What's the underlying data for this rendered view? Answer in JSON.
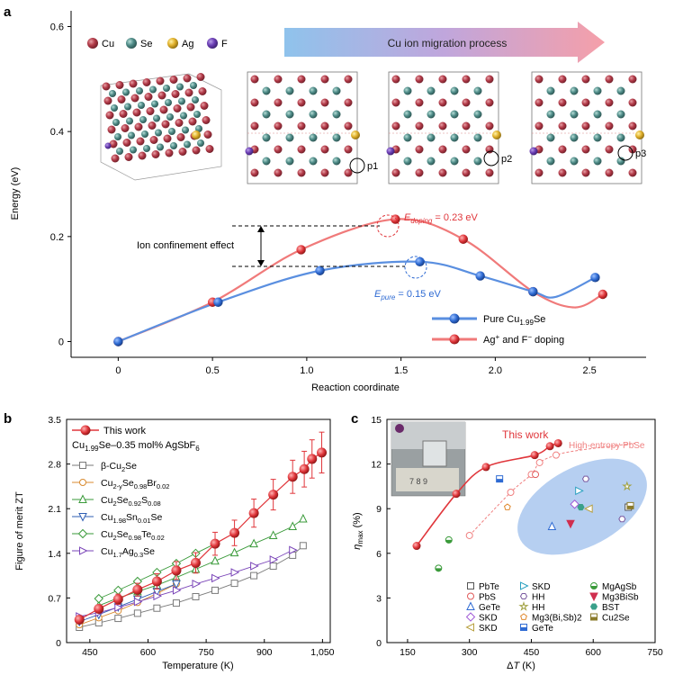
{
  "panel_labels": {
    "a": "a",
    "b": "b",
    "c": "c"
  },
  "chart_data": [
    {
      "id": "a",
      "type": "line",
      "title": "Cu ion migration process",
      "xlabel": "Reaction coordinate",
      "ylabel": "Energy (eV)",
      "xlim": [
        -0.25,
        2.8
      ],
      "ylim": [
        -0.03,
        0.63
      ],
      "xticks": [
        0,
        0.5,
        1,
        1.5,
        2,
        2.5
      ],
      "xtick_labels": [
        "0",
        "0.5",
        "1.0",
        "1.5",
        "2.0",
        "2.5"
      ],
      "yticks": [
        0,
        0.2,
        0.4,
        0.6
      ],
      "ytick_labels": [
        "0",
        "0.2",
        "0.4",
        "0.6"
      ],
      "atom_legend": [
        {
          "label": "Cu",
          "color": "#b23a48"
        },
        {
          "label": "Se",
          "color": "#4f8c88"
        },
        {
          "label": "Ag",
          "color": "#e1b12c"
        },
        {
          "label": "F",
          "color": "#6c3fb5"
        }
      ],
      "structure_positions": [
        "p1",
        "p2",
        "p3"
      ],
      "series": [
        {
          "name": "Pure Cu1.99Se",
          "name_main": "Pure Cu",
          "name_sub": "1.99",
          "name_tail": "Se",
          "color": "#2f6bd3",
          "x": [
            0,
            0.53,
            1.07,
            1.6,
            1.92,
            2.2,
            2.53
          ],
          "y": [
            0,
            0.075,
            0.135,
            0.152,
            0.125,
            0.095,
            0.122
          ]
        },
        {
          "name": "Ag+ and F- doping",
          "name_main": "Ag",
          "name_sup1": "+",
          "name_mid": " and F",
          "name_sup2": "−",
          "name_tail": " doping",
          "color": "#e0363b",
          "x": [
            0,
            0.5,
            0.97,
            1.47,
            1.83,
            2.2,
            2.57
          ],
          "y": [
            0,
            0.075,
            0.175,
            0.233,
            0.195,
            0.095,
            0.09
          ]
        }
      ],
      "annotations": {
        "ion_confinement": "Ion confinement effect",
        "e_doping_label": "E",
        "e_doping_sub": "doping",
        "e_doping_value": " = 0.23 eV",
        "e_pure_label": "E",
        "e_pure_sub": "pure",
        "e_pure_value": " = 0.15 eV"
      }
    },
    {
      "id": "b",
      "type": "line",
      "xlabel": "Temperature (K)",
      "ylabel": "Figure of merit ZT",
      "xlim": [
        390,
        1070
      ],
      "ylim": [
        0,
        3.5
      ],
      "xticks": [
        450,
        600,
        750,
        900,
        1050
      ],
      "xtick_labels": [
        "450",
        "600",
        "750",
        "900",
        "1,050"
      ],
      "yticks": [
        0,
        0.7,
        1.4,
        2.1,
        2.8,
        3.5
      ],
      "ytick_labels": [
        "0",
        "0.7",
        "1.4",
        "2.1",
        "2.8",
        "3.5"
      ],
      "this_work": {
        "name": "This work",
        "composition": "Cu1.99Se–0.35 mol% AgSbF6",
        "comp_main": "Cu",
        "comp_sub1": "1.99",
        "comp_mid": "Se–0.35 mol% AgSbF",
        "comp_sub2": "6",
        "color": "#e0363b",
        "x": [
          423,
          473,
          523,
          573,
          623,
          673,
          723,
          773,
          823,
          873,
          923,
          973,
          1003,
          1023,
          1048
        ],
        "y": [
          0.36,
          0.53,
          0.68,
          0.83,
          0.96,
          1.13,
          1.25,
          1.55,
          1.72,
          2.03,
          2.32,
          2.6,
          2.72,
          2.88,
          2.98
        ],
        "err": [
          0.05,
          0.06,
          0.08,
          0.1,
          0.12,
          0.14,
          0.16,
          0.18,
          0.2,
          0.22,
          0.24,
          0.26,
          0.28,
          0.3,
          0.32
        ]
      },
      "series": [
        {
          "name": "β-Cu2Se",
          "marker": "square",
          "color": "#7a7a7a",
          "x": [
            423,
            473,
            523,
            573,
            623,
            673,
            723,
            773,
            823,
            873,
            923,
            973,
            1000
          ],
          "y": [
            0.24,
            0.31,
            0.38,
            0.46,
            0.54,
            0.62,
            0.72,
            0.82,
            0.93,
            1.05,
            1.2,
            1.37,
            1.52
          ]
        },
        {
          "name": "Cu2-ySe0.98Br0.02",
          "marker": "circle",
          "color": "#d88a2f",
          "x": [
            423,
            473,
            523,
            573,
            623,
            673
          ],
          "y": [
            0.28,
            0.39,
            0.5,
            0.63,
            0.77,
            0.92
          ]
        },
        {
          "name": "Cu2Se0.92S0.08",
          "marker": "triangle-up",
          "color": "#3a9a3a",
          "x": [
            473,
            523,
            573,
            623,
            673,
            723,
            773,
            823,
            873,
            923,
            973,
            1000
          ],
          "y": [
            0.58,
            0.7,
            0.8,
            0.9,
            1.02,
            1.15,
            1.28,
            1.41,
            1.55,
            1.68,
            1.82,
            1.94
          ]
        },
        {
          "name": "Cu1.98Sn0.01Se",
          "marker": "triangle-down",
          "color": "#2f5fb3",
          "x": [
            423,
            473,
            523,
            573,
            623,
            673
          ],
          "y": [
            0.33,
            0.44,
            0.56,
            0.68,
            0.8,
            0.92
          ]
        },
        {
          "name": "Cu2Se0.98Te0.02",
          "marker": "diamond",
          "color": "#3a9a3a",
          "x": [
            473,
            523,
            573,
            623,
            673,
            723,
            773
          ],
          "y": [
            0.69,
            0.82,
            0.96,
            1.1,
            1.24,
            1.4,
            1.55
          ]
        },
        {
          "name": "Cu1.7Ag0.3Se",
          "marker": "triangle-right",
          "color": "#7a45b8",
          "x": [
            423,
            473,
            523,
            573,
            623,
            673,
            723,
            773,
            823,
            873,
            923,
            973
          ],
          "y": [
            0.41,
            0.47,
            0.55,
            0.64,
            0.73,
            0.82,
            0.92,
            1.01,
            1.1,
            1.2,
            1.3,
            1.45
          ]
        }
      ],
      "legend_labels": [
        [
          "β-Cu",
          "2",
          "Se"
        ],
        [
          "Cu",
          "2-y",
          "Se",
          "0.98",
          "Br",
          "0.02",
          ""
        ],
        [
          "Cu",
          "2",
          "Se",
          "0.92",
          "S",
          "0.08",
          ""
        ],
        [
          "Cu",
          "1.98",
          "Sn",
          "0.01",
          "Se"
        ],
        [
          "Cu",
          "2",
          "Se",
          "0.98",
          "Te",
          "0.02",
          ""
        ],
        [
          "Cu",
          "1.7",
          "Ag",
          "0.3",
          "Se"
        ]
      ]
    },
    {
      "id": "c",
      "type": "scatter",
      "xlabel": "ΔT (K)",
      "xlabel_delta": "Δ",
      "xlabel_T": "T",
      "xlabel_unit": " (K)",
      "ylabel": "ηmax (%)",
      "ylabel_eta": "η",
      "ylabel_sub": "max",
      "ylabel_unit": " (%)",
      "xlim": [
        100,
        750
      ],
      "ylim": [
        0,
        15
      ],
      "xticks": [
        150,
        300,
        450,
        600,
        750
      ],
      "xtick_labels": [
        "150",
        "300",
        "450",
        "600",
        "750"
      ],
      "yticks": [
        0,
        3,
        6,
        9,
        12,
        15
      ],
      "ytick_labels": [
        "0",
        "3",
        "6",
        "9",
        "12",
        "15"
      ],
      "this_work": {
        "name": "This work",
        "color": "#e0363b",
        "x": [
          172,
          268,
          340,
          458,
          495,
          515
        ],
        "y": [
          6.5,
          10.0,
          11.8,
          12.6,
          13.2,
          13.4
        ]
      },
      "high_entropy": {
        "name": "High-entropy PbSe",
        "color": "#f08080",
        "x": [
          300,
          400,
          450,
          470,
          510
        ],
        "y": [
          7.2,
          10.1,
          11.3,
          12.1,
          12.6
        ]
      },
      "others": [
        {
          "name": "PbTe",
          "marker": "square-open",
          "color": "#555555",
          "x": [
            685
          ],
          "y": [
            9.1
          ]
        },
        {
          "name": "PbS",
          "marker": "circle-open",
          "color": "#e05a5a",
          "x": [
            460
          ],
          "y": [
            11.3
          ]
        },
        {
          "name": "GeTe",
          "marker": "triangle-open",
          "color": "#2f6bd3",
          "x": [
            500
          ],
          "y": [
            7.8
          ]
        },
        {
          "name": "SKD",
          "marker": "diamond-open",
          "color": "#a05bd6",
          "x": [
            555
          ],
          "y": [
            9.3
          ]
        },
        {
          "name": "SKD",
          "marker": "triangle-left-open",
          "color": "#b8a040",
          "x": [
            590
          ],
          "y": [
            9.0
          ]
        },
        {
          "name": "SKD",
          "marker": "triangle-right-open",
          "color": "#2aa0c0",
          "x": [
            565
          ],
          "y": [
            10.2
          ]
        },
        {
          "name": "HH",
          "marker": "hexagon-open",
          "color": "#7a5aa0",
          "x": [
            582,
            670
          ],
          "y": [
            11.0,
            8.3
          ]
        },
        {
          "name": "HH",
          "marker": "star-open",
          "color": "#a0a040",
          "x": [
            682
          ],
          "y": [
            10.5
          ]
        },
        {
          "name": "Mg3(Bi,Sb)2",
          "marker": "pentagon-open",
          "color": "#e08a2f",
          "x": [
            392
          ],
          "y": [
            9.1
          ]
        },
        {
          "name": "GeTe",
          "marker": "half-square",
          "color": "#2f6bd3",
          "x": [
            373
          ],
          "y": [
            11.0
          ]
        },
        {
          "name": "MgAgSb",
          "marker": "half-circle",
          "color": "#3a9a3a",
          "x": [
            225,
            250
          ],
          "y": [
            5.0,
            6.9
          ]
        },
        {
          "name": "Mg3BiSb",
          "marker": "triangle-down-filled",
          "color": "#d02f4f",
          "x": [
            545
          ],
          "y": [
            8.0
          ]
        },
        {
          "name": "BST",
          "marker": "hexagon-filled",
          "color": "#3aa08a",
          "x": [
            570
          ],
          "y": [
            9.1
          ]
        },
        {
          "name": "Cu2Se",
          "marker": "half-square-olive",
          "color": "#8a7a2a",
          "x": [
            690
          ],
          "y": [
            9.2
          ]
        }
      ],
      "legend_col1": [
        "PbTe",
        "PbS",
        "GeTe",
        "SKD",
        "SKD"
      ],
      "legend_col2": [
        "SKD",
        "HH",
        "HH",
        "Mg3(Bi,Sb)2",
        "GeTe"
      ],
      "legend_col3": [
        "MgAgSb",
        "Mg3BiSb",
        "BST",
        "Cu2Se"
      ],
      "inset_caption": "photo of thermoelectric module"
    }
  ]
}
